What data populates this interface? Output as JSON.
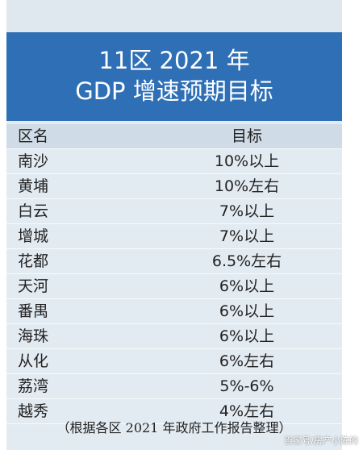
{
  "title": [
    "11区 2021 年",
    "GDP 增速预期目标"
  ],
  "table": {
    "header": [
      "区名",
      "目标"
    ],
    "rows": [
      [
        "南沙",
        "10%以上"
      ],
      [
        "黄埔",
        "10%左右"
      ],
      [
        "白云",
        "7%以上"
      ],
      [
        "增城",
        "7%以上"
      ],
      [
        "花都",
        "6.5%左右"
      ],
      [
        "天河",
        "6%以上"
      ],
      [
        "番禺",
        "6%以上"
      ],
      [
        "海珠",
        "6%以上"
      ],
      [
        "从化",
        "6%左右"
      ],
      [
        "荔湾",
        "5%-6%"
      ],
      [
        "越秀",
        "4%左右"
      ]
    ]
  },
  "footer": "（根据各区 2021 年政府工作报告整理）",
  "watermark": "百家号/房产小陈的"
}
